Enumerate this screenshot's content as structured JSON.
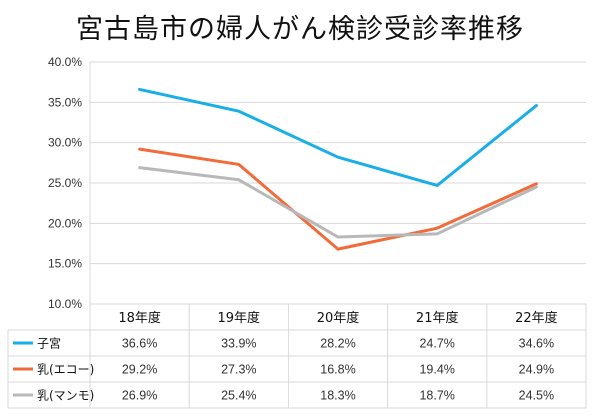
{
  "chart_data": {
    "type": "line",
    "title": "宮古島市の婦人がん検診受診率推移",
    "categories": [
      "18年度",
      "19年度",
      "20年度",
      "21年度",
      "22年度"
    ],
    "series": [
      {
        "name": "子宮",
        "color": "#1aaee6",
        "values": [
          36.6,
          33.9,
          28.2,
          24.7,
          34.6
        ],
        "labels": [
          "36.6%",
          "33.9%",
          "28.2%",
          "24.7%",
          "34.6%"
        ]
      },
      {
        "name": "乳(エコー)",
        "color": "#f26b3a",
        "values": [
          29.2,
          27.3,
          16.8,
          19.4,
          24.9
        ],
        "labels": [
          "29.2%",
          "27.3%",
          "16.8%",
          "19.4%",
          "24.9%"
        ]
      },
      {
        "name": "乳(マンモ)",
        "color": "#b8b8b8",
        "values": [
          26.9,
          25.4,
          18.3,
          18.7,
          24.5
        ],
        "labels": [
          "26.9%",
          "25.4%",
          "18.3%",
          "18.7%",
          "24.5%"
        ]
      }
    ],
    "ylim": [
      10,
      40
    ],
    "yticks": [
      "10.0%",
      "15.0%",
      "20.0%",
      "25.0%",
      "30.0%",
      "35.0%",
      "40.0%"
    ],
    "grid": true,
    "legend": "data-table"
  }
}
